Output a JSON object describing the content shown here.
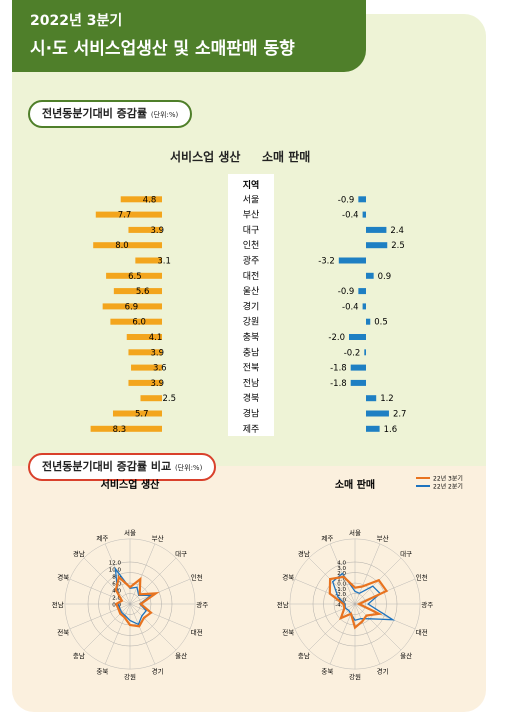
{
  "header": {
    "line1": "2022년 3분기",
    "line2": "시·도 서비스업생산 및 소매판매 동향"
  },
  "section1": {
    "title": "전년동분기대비 증감률",
    "unit": "(단위:%)"
  },
  "section2": {
    "title": "전년동분기대비 증감률 비교",
    "unit": "(단위:%)"
  },
  "colors": {
    "header_green": "#4f7f2a",
    "bar_orange": "#f3a51d",
    "bar_blue": "#1e7fc3",
    "line_orange": "#e8731f",
    "line_blue": "#1e73be"
  },
  "chart_data": [
    {
      "type": "bar",
      "title": "서비스업 생산",
      "category_header": "지역",
      "categories": [
        "서울",
        "부산",
        "대구",
        "인천",
        "광주",
        "대전",
        "울산",
        "경기",
        "강원",
        "충북",
        "충남",
        "전북",
        "전남",
        "경북",
        "경남",
        "제주"
      ],
      "values": [
        4.8,
        7.7,
        3.9,
        8.0,
        3.1,
        6.5,
        5.6,
        6.9,
        6.0,
        4.1,
        3.9,
        3.6,
        3.9,
        2.5,
        5.7,
        8.3
      ],
      "orientation": "horizontal-left"
    },
    {
      "type": "bar",
      "title": "소매 판매",
      "categories": [
        "서울",
        "부산",
        "대구",
        "인천",
        "광주",
        "대전",
        "울산",
        "경기",
        "강원",
        "충북",
        "충남",
        "전북",
        "전남",
        "경북",
        "경남",
        "제주"
      ],
      "values": [
        -0.9,
        -0.4,
        2.4,
        2.5,
        -3.2,
        0.9,
        -0.9,
        -0.4,
        0.5,
        -2.0,
        -0.2,
        -1.8,
        -1.8,
        1.2,
        2.7,
        1.6
      ],
      "orientation": "horizontal-diverging"
    },
    {
      "type": "radar",
      "title": "서비스업 생산",
      "axes": [
        "서울",
        "부산",
        "대구",
        "인천",
        "광주",
        "대전",
        "울산",
        "경기",
        "강원",
        "충북",
        "충남",
        "전북",
        "전남",
        "경북",
        "경남",
        "제주"
      ],
      "rlim": [
        0.0,
        12.0
      ],
      "ticks": [
        "12.0",
        "10.0",
        "8.0",
        "6.0",
        "4.0",
        "2.0",
        "0.0"
      ],
      "legend": [
        "22년 3분기",
        "22년 2분기"
      ],
      "series": [
        {
          "name": "22년 3분기",
          "values": [
            4.8,
            7.7,
            3.9,
            8.0,
            3.1,
            6.5,
            5.6,
            6.9,
            6.0,
            4.1,
            3.9,
            3.6,
            3.9,
            2.5,
            5.7,
            8.3
          ]
        },
        {
          "name": "22년 2분기",
          "values": [
            4.5,
            5.2,
            3.5,
            6.5,
            2.8,
            5.0,
            4.8,
            6.3,
            4.7,
            3.6,
            3.4,
            3.2,
            3.3,
            2.6,
            5.0,
            10.9
          ]
        }
      ]
    },
    {
      "type": "radar",
      "title": "소매 판매",
      "axes": [
        "서울",
        "부산",
        "대구",
        "인천",
        "광주",
        "대전",
        "울산",
        "경기",
        "강원",
        "충북",
        "충남",
        "전북",
        "전남",
        "경북",
        "경남",
        "제주"
      ],
      "rlim": [
        -4.0,
        4.0
      ],
      "ticks": [
        "4.0",
        "3.0",
        "2.0",
        "1.0",
        "0.0",
        "-1.0",
        "-2.0",
        "-3.0",
        "-4.0"
      ],
      "legend": [
        "22년 3분기",
        "22년 2분기"
      ],
      "series": [
        {
          "name": "22년 3분기",
          "values": [
            -0.9,
            -0.4,
            2.4,
            2.5,
            -3.2,
            0.9,
            -0.9,
            -0.4,
            0.5,
            -2.0,
            -0.2,
            -1.8,
            -1.8,
            1.2,
            2.7,
            1.6
          ]
        },
        {
          "name": "22년 2분기",
          "values": [
            -1.6,
            -1.8,
            0.8,
            1.2,
            -1.5,
            3.8,
            0.0,
            -1.0,
            -0.9,
            -2.0,
            -2.3,
            -2.0,
            -2.1,
            -0.5,
            2.0,
            2.3
          ]
        }
      ]
    }
  ]
}
